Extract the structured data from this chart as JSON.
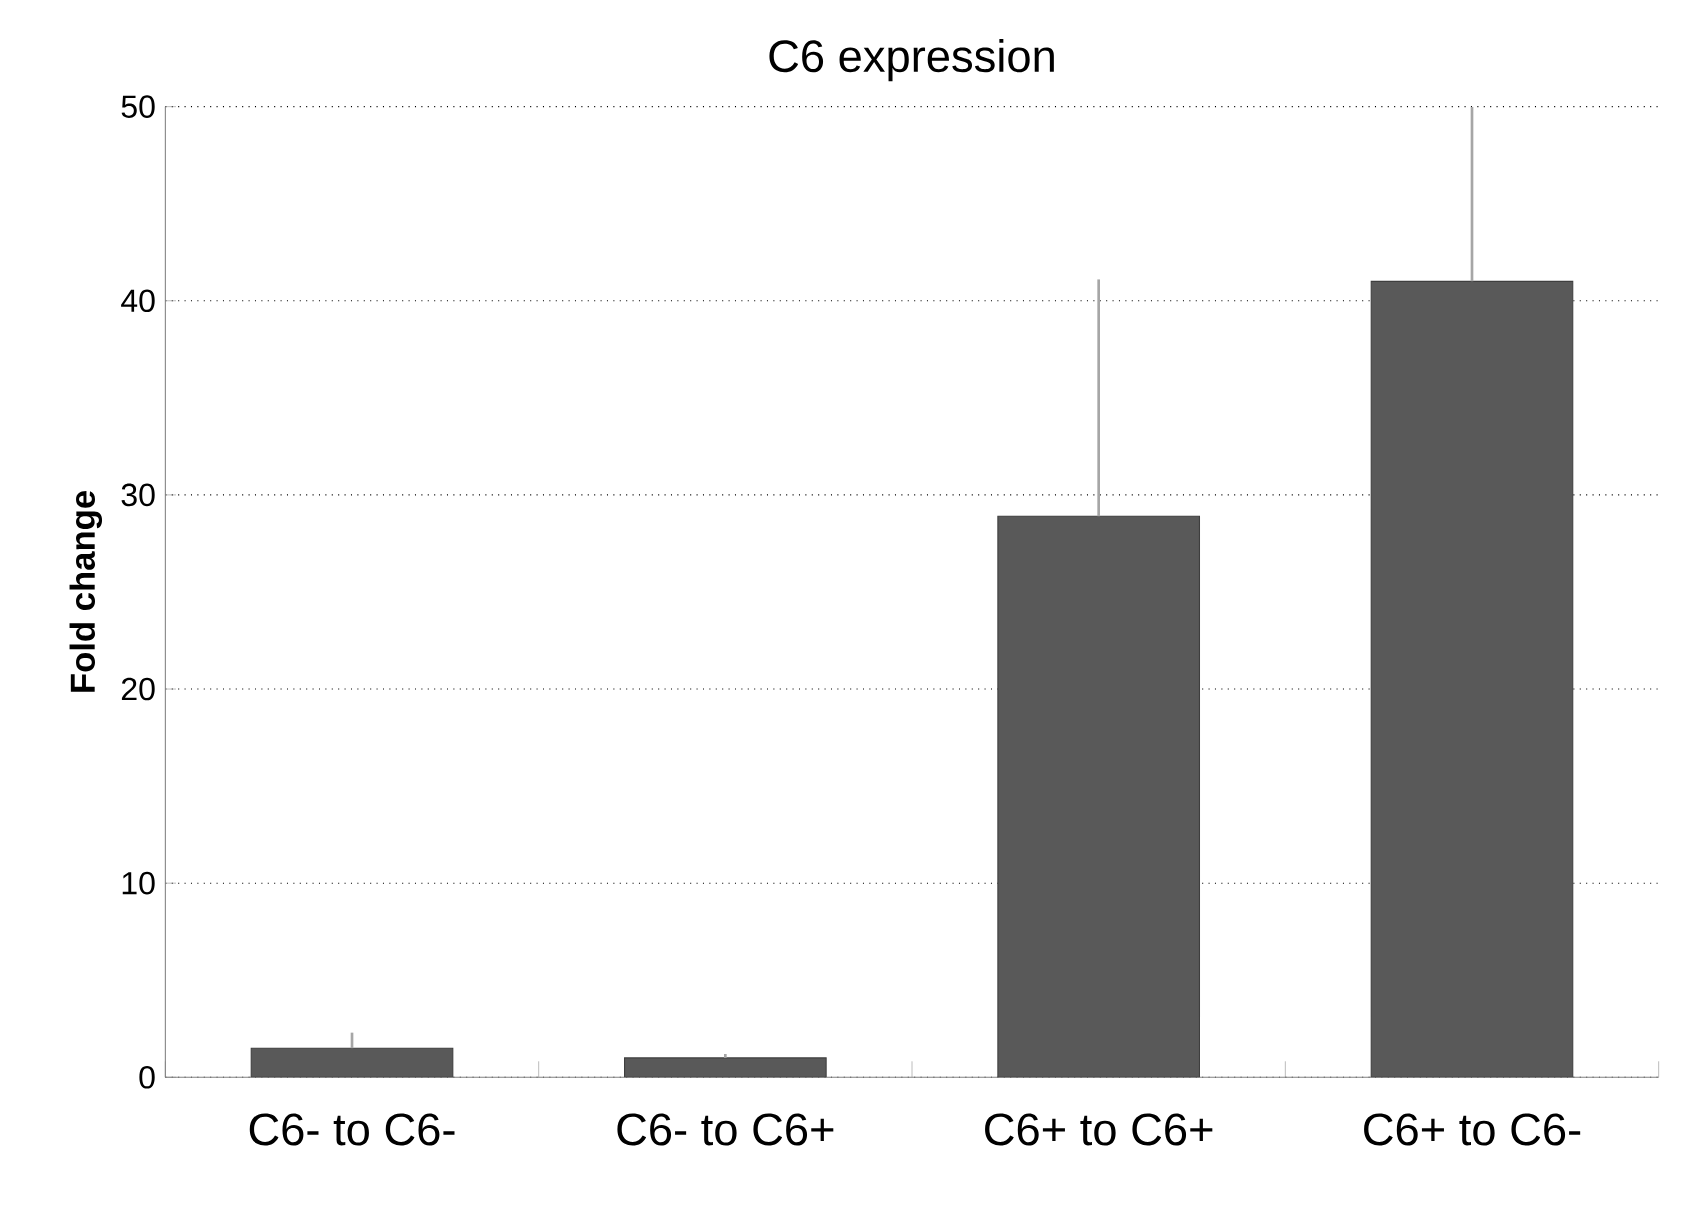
{
  "chart_data": {
    "type": "bar",
    "title": "C6 expression",
    "ylabel": "Fold change",
    "categories": [
      "C6- to C6-",
      "C6- to C6+",
      "C6+ to C6+",
      "C6+ to C6-"
    ],
    "values": [
      1.5,
      1.0,
      28.9,
      41.0
    ],
    "errors": [
      [
        1.5,
        2.3
      ],
      [
        1.0,
        1.2
      ],
      [
        28.9,
        41.1
      ],
      [
        41.0,
        50.0
      ]
    ],
    "color": "#595959",
    "ylim": [
      0,
      50
    ],
    "yticks": [
      0,
      10,
      20,
      30,
      40,
      50
    ],
    "grid": "y"
  }
}
